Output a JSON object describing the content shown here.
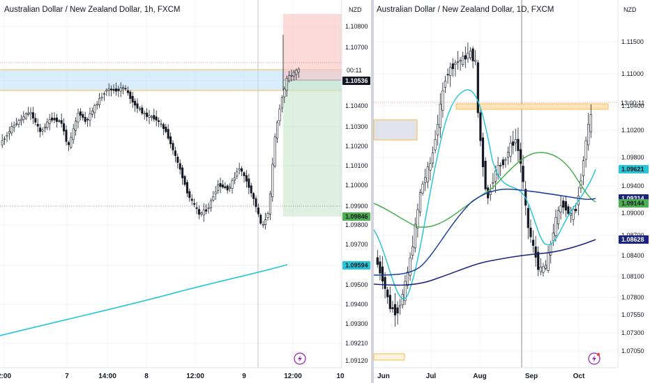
{
  "charts": [
    {
      "title": "Australian Dollar / New Zealand Dollar, 1h, FXCM",
      "currency": "NZD",
      "timeframe": "1h",
      "y_ticks": [
        "1.10800",
        "1.10700",
        "1.10536",
        "1.10400",
        "1.10300",
        "1.10200",
        "1.10100",
        "1.10000",
        "1.09900",
        "1.09846",
        "1.09800",
        "1.09700",
        "1.09594",
        "1.09500",
        "1.09400",
        "1.09300",
        "1.09210",
        "1.09120"
      ],
      "x_ticks": [
        "2:00",
        "7",
        "14:00",
        "8",
        "12:00",
        "9",
        "12:00",
        "10"
      ],
      "countdown": "00:11",
      "price_tags": [
        {
          "label": "1.10536",
          "bg": "#131722",
          "fg": "#ffffff"
        },
        {
          "label": "1.09846",
          "bg": "#4caf50",
          "fg": "#131722"
        },
        {
          "label": "1.09594",
          "bg": "#26c6da",
          "fg": "#131722"
        }
      ]
    },
    {
      "title": "Australian Dollar / New Zealand Dollar, 1D, FXCM",
      "currency": "NZD",
      "timeframe": "1D",
      "y_ticks": [
        "1.11500",
        "1.11000",
        "1.10400",
        "1.10200",
        "1.09800",
        "1.09400",
        "1.09000",
        "1.08700",
        "1.08400",
        "1.08100",
        "1.07800",
        "1.07550",
        "1.07300",
        "1.07050"
      ],
      "x_ticks": [
        "Jun",
        "Jul",
        "Aug",
        "Sep",
        "Oct"
      ],
      "countdown": "13:00:11",
      "price_tags": [
        {
          "label": "1.09621",
          "bg": "#26c6da",
          "fg": "#131722"
        },
        {
          "label": "1.09314",
          "bg": "#1a237e",
          "fg": "#ffffff"
        },
        {
          "label": "1.09144",
          "bg": "#4caf50",
          "fg": "#131722"
        },
        {
          "label": "1.08628",
          "bg": "#1a237e",
          "fg": "#ffffff"
        }
      ]
    }
  ],
  "colors": {
    "up_candle": "#ffffff",
    "down_candle": "#131722",
    "ema_fast": "#26c6da",
    "ema_mid": "#4caf50",
    "ema_slow": "#1a237e",
    "ema_slow2": "#1a3fa0",
    "zone_blue": "#bbdefb",
    "zone_orange": "#ffb74d",
    "stop_zone": "#f8bbbb",
    "target_zone": "#c8e6c9"
  },
  "icons": [
    "lightning-icon",
    "lightning-icon"
  ],
  "chart_data": [
    {
      "type": "candlestick",
      "title": "Australian Dollar / New Zealand Dollar, 1h, FXCM",
      "ylabel": "NZD",
      "ylim": [
        1.0912,
        1.1084
      ],
      "x_ticks": [
        "2:00",
        "7",
        "14:00",
        "8",
        "12:00",
        "9",
        "12:00",
        "10"
      ],
      "last_price": 1.10536,
      "marked_levels": [
        1.10536,
        1.09846,
        1.09594
      ],
      "indicators": [
        {
          "type": "moving-average",
          "color": "#26c6da",
          "start": 1.0922,
          "end": 1.096
        }
      ],
      "zones": [
        {
          "type": "support-resistance",
          "from": 1.1047,
          "to": 1.1059
        },
        {
          "type": "stop",
          "from": 1.1049,
          "to": 1.1084
        },
        {
          "type": "target",
          "from": 1.0985,
          "to": 1.1049
        }
      ]
    },
    {
      "type": "candlestick",
      "title": "Australian Dollar / New Zealand Dollar, 1D, FXCM",
      "ylabel": "NZD",
      "ylim": [
        1.07,
        1.1165
      ],
      "x_ticks": [
        "Jun",
        "Jul",
        "Aug",
        "Sep",
        "Oct"
      ],
      "last_price": 1.1045,
      "marked_levels": [
        1.09621,
        1.09314,
        1.09144,
        1.08628
      ],
      "indicators": [
        {
          "type": "moving-average",
          "color": "#26c6da",
          "end": 1.09621
        },
        {
          "type": "moving-average",
          "color": "#4caf50",
          "end": 1.09144
        },
        {
          "type": "moving-average",
          "color": "#1a3fa0",
          "end": 1.09314
        },
        {
          "type": "moving-average",
          "color": "#1a237e",
          "end": 1.08628
        }
      ],
      "zones": [
        {
          "type": "resistance",
          "from": 1.104,
          "to": 1.1046
        }
      ]
    }
  ]
}
